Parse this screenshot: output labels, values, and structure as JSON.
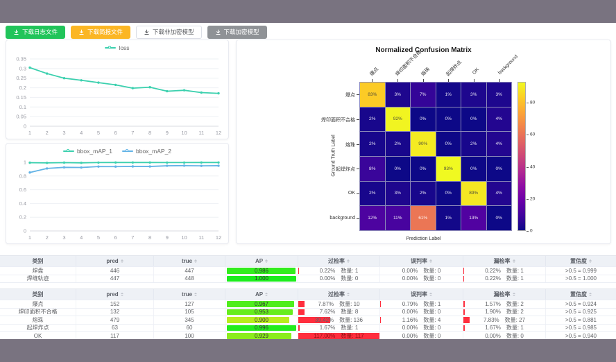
{
  "toolbar": {
    "buttons": [
      {
        "label": "下载日志文件",
        "style": "green"
      },
      {
        "label": "下载简报文件",
        "style": "amber"
      },
      {
        "label": "下载非加密模型",
        "style": "plain"
      },
      {
        "label": "下载加密模型",
        "style": "gray"
      }
    ]
  },
  "chart_data": [
    {
      "type": "line",
      "title": "loss",
      "legend": [
        "loss"
      ],
      "x": [
        1,
        2,
        3,
        4,
        5,
        6,
        7,
        8,
        9,
        10,
        11,
        12
      ],
      "series": [
        {
          "name": "loss",
          "color": "#3bd0ae",
          "values": [
            0.305,
            0.274,
            0.25,
            0.239,
            0.227,
            0.215,
            0.198,
            0.203,
            0.182,
            0.187,
            0.175,
            0.171
          ]
        }
      ],
      "ylim": [
        0,
        0.35
      ],
      "yticks": [
        0,
        0.05,
        0.1,
        0.15,
        0.2,
        0.25,
        0.3,
        0.35
      ],
      "grid": true,
      "legend_position": "top"
    },
    {
      "type": "line",
      "title": "bbox_mAP",
      "legend": [
        "bbox_mAP_1",
        "bbox_mAP_2"
      ],
      "x": [
        1,
        2,
        3,
        4,
        5,
        6,
        7,
        8,
        9,
        10,
        11,
        12
      ],
      "series": [
        {
          "name": "bbox_mAP_1",
          "color": "#3bd0ae",
          "values": [
            0.994,
            0.991,
            0.995,
            0.992,
            0.996,
            0.997,
            0.997,
            0.997,
            0.996,
            0.996,
            0.997,
            0.997
          ]
        },
        {
          "name": "bbox_mAP_2",
          "color": "#62b3e6",
          "values": [
            0.851,
            0.91,
            0.926,
            0.924,
            0.938,
            0.937,
            0.94,
            0.939,
            0.949,
            0.951,
            0.948,
            0.95
          ]
        }
      ],
      "ylim": [
        0,
        1
      ],
      "yticks": [
        0,
        0.2,
        0.4,
        0.6,
        0.8,
        1
      ],
      "grid": true,
      "legend_position": "top"
    },
    {
      "type": "heatmap",
      "title": "Normalized Confusion Matrix",
      "xlabel": "Prediction Label",
      "ylabel": "Ground Truth Label",
      "labels": [
        "爆点",
        "焊印面积不合格",
        "熔珠",
        "起焊炸点",
        "OK",
        "background"
      ],
      "matrix": [
        [
          83,
          3,
          7,
          1,
          3,
          3
        ],
        [
          2,
          92,
          0,
          0,
          0,
          4
        ],
        [
          2,
          2,
          90,
          0,
          2,
          4
        ],
        [
          8,
          0,
          0,
          93,
          0,
          0
        ],
        [
          2,
          3,
          2,
          0,
          89,
          4
        ],
        [
          12,
          11,
          61,
          1,
          13,
          0
        ]
      ],
      "unit": "%",
      "vmin": 0,
      "vmax": 93,
      "colorbar_ticks": [
        0,
        20,
        40,
        60,
        80
      ],
      "colormap": "plasma"
    }
  ],
  "tables": [
    {
      "headers": [
        {
          "label": "类别",
          "sortable": false
        },
        {
          "label": "pred",
          "sortable": true
        },
        {
          "label": "true",
          "sortable": true
        },
        {
          "label": "AP",
          "sortable": true
        },
        {
          "label": "过检率",
          "sortable": true
        },
        {
          "label": "误判率",
          "sortable": true
        },
        {
          "label": "漏检率",
          "sortable": true
        },
        {
          "label": "置信度",
          "sortable": true
        }
      ],
      "rows": [
        {
          "cls": "焊盘",
          "pred": "446",
          "true": "447",
          "ap": "0.986",
          "overkill": {
            "pct": "0.22%",
            "count": "数量: 1"
          },
          "misjudge": {
            "pct": "0.00%",
            "count": "数量: 0"
          },
          "miss": {
            "pct": "0.22%",
            "count": "数量: 1"
          },
          "confidence": ">0.5 = 0.999"
        },
        {
          "cls": "焊缝轨迹",
          "pred": "447",
          "true": "448",
          "ap": "1.000",
          "overkill": {
            "pct": "0.00%",
            "count": "数量: 0"
          },
          "misjudge": {
            "pct": "0.00%",
            "count": "数量: 0"
          },
          "miss": {
            "pct": "0.22%",
            "count": "数量: 1"
          },
          "confidence": ">0.5 = 1.000"
        }
      ]
    },
    {
      "headers": [
        {
          "label": "类别",
          "sortable": false
        },
        {
          "label": "pred",
          "sortable": true
        },
        {
          "label": "true",
          "sortable": true
        },
        {
          "label": "AP",
          "sortable": true
        },
        {
          "label": "过检率",
          "sortable": true
        },
        {
          "label": "误判率",
          "sortable": true
        },
        {
          "label": "漏检率",
          "sortable": true
        },
        {
          "label": "置信度",
          "sortable": true
        }
      ],
      "rows": [
        {
          "cls": "爆点",
          "pred": "152",
          "true": "127",
          "ap": "0.967",
          "overkill": {
            "pct": "7.87%",
            "count": "数量: 10"
          },
          "misjudge": {
            "pct": "0.79%",
            "count": "数量: 1"
          },
          "miss": {
            "pct": "1.57%",
            "count": "数量: 2"
          },
          "confidence": ">0.5 = 0.924"
        },
        {
          "cls": "焊印面积不合格",
          "pred": "132",
          "true": "105",
          "ap": "0.953",
          "overkill": {
            "pct": "7.62%",
            "count": "数量: 8"
          },
          "misjudge": {
            "pct": "0.00%",
            "count": "数量: 0"
          },
          "miss": {
            "pct": "1.90%",
            "count": "数量: 2"
          },
          "confidence": ">0.5 = 0.925"
        },
        {
          "cls": "熔珠",
          "pred": "479",
          "true": "345",
          "ap": "0.900",
          "overkill": {
            "pct": "39.42%",
            "count": "数量: 136"
          },
          "misjudge": {
            "pct": "1.16%",
            "count": "数量: 4"
          },
          "miss": {
            "pct": "7.83%",
            "count": "数量: 27"
          },
          "confidence": ">0.5 = 0.881"
        },
        {
          "cls": "起焊炸点",
          "pred": "63",
          "true": "60",
          "ap": "0.996",
          "overkill": {
            "pct": "1.67%",
            "count": "数量: 1"
          },
          "misjudge": {
            "pct": "0.00%",
            "count": "数量: 0"
          },
          "miss": {
            "pct": "1.67%",
            "count": "数量: 1"
          },
          "confidence": ">0.5 = 0.985"
        },
        {
          "cls": "OK",
          "pred": "117",
          "true": "100",
          "ap": "0.929",
          "overkill": {
            "pct": "117.00%",
            "count": "数量: 117"
          },
          "misjudge": {
            "pct": "0.00%",
            "count": "数量: 0"
          },
          "miss": {
            "pct": "0.00%",
            "count": "数量: 0"
          },
          "confidence": ">0.5 = 0.940"
        }
      ]
    }
  ],
  "colors": {
    "chrome_bar": "#797380",
    "loss_line": "#3bd0ae",
    "map1_line": "#3bd0ae",
    "map2_line": "#62b3e6",
    "overkill_bar": "#ff2e3e"
  }
}
